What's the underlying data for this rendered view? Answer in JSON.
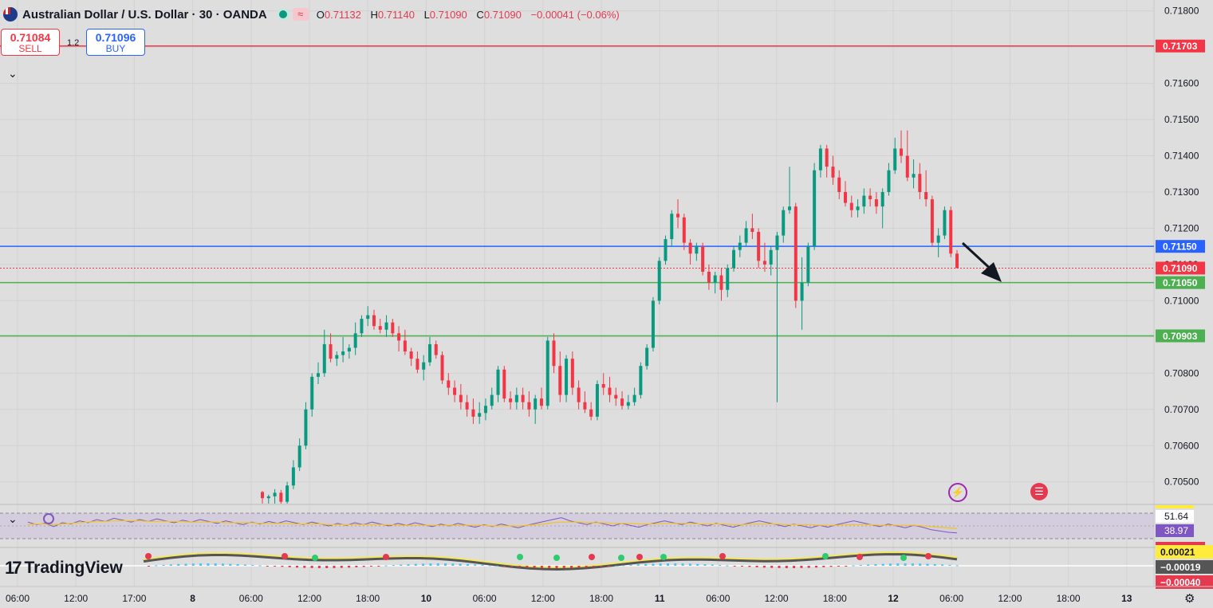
{
  "header": {
    "symbol_title": "Australian Dollar / U.S. Dollar · 30 · OANDA",
    "flag_icon": "au-us-flag-icon",
    "ohlc": {
      "open_label": "O",
      "open": "0.71132",
      "high_label": "H",
      "high": "0.71140",
      "low_label": "L",
      "low": "0.71090",
      "close_label": "C",
      "close": "0.71090",
      "change": "−0.00041 (−0.06%)"
    }
  },
  "trade": {
    "sell_price": "0.71084",
    "sell_label": "SELL",
    "spread": "1.2",
    "buy_price": "0.71096",
    "buy_label": "BUY"
  },
  "price_axis": {
    "ticks": [
      0.718,
      0.717,
      0.716,
      0.715,
      0.714,
      0.713,
      0.712,
      0.711,
      0.71,
      0.709,
      0.708,
      0.707,
      0.706,
      0.705
    ],
    "tick_labels": [
      "0.71800",
      "0.71700",
      "0.71600",
      "0.71500",
      "0.71400",
      "0.71300",
      "0.71200",
      "0.71100",
      "0.71000",
      "0.70900",
      "0.70800",
      "0.70700",
      "0.70600",
      "0.70500"
    ]
  },
  "levels": [
    {
      "price": 0.71703,
      "label": "0.71703",
      "color": "#f23645"
    },
    {
      "price": 0.7115,
      "label": "0.71150",
      "color": "#2962ff"
    },
    {
      "price": 0.7109,
      "label": "0.71090",
      "color": "#f23645"
    },
    {
      "price": 0.7105,
      "label": "0.71050",
      "color": "#4caf50"
    },
    {
      "price": 0.70903,
      "label": "0.70903",
      "color": "#4caf50"
    }
  ],
  "time_axis": {
    "labels": [
      "06:00",
      "12:00",
      "17:00",
      "8",
      "06:00",
      "12:00",
      "18:00",
      "10",
      "06:00",
      "12:00",
      "18:00",
      "11",
      "06:00",
      "12:00",
      "18:00",
      "12",
      "06:00",
      "12:00",
      "18:00",
      "13"
    ]
  },
  "rsi": {
    "value_1": "51.64",
    "value_2": "38.97"
  },
  "macd": {
    "value_1": "0.00021",
    "value_2": "−0.00019",
    "value_3": "−0.00040"
  },
  "branding": {
    "logo_text": "TradingView"
  },
  "icons": {
    "chevron": "chevron-down-icon",
    "settings": "gear-icon",
    "bolt": "lightning-icon",
    "us_flag": "us-flag-icon"
  },
  "colors": {
    "up": "#089981",
    "down": "#f23645",
    "rsi": "#7e57c2",
    "rsi_ma": "#f5c518"
  },
  "chart_data": {
    "type": "candlestick",
    "y_range": [
      0.7044,
      0.7183
    ],
    "candles": [
      [
        0.70472,
        0.70475,
        0.7044,
        0.70455
      ],
      [
        0.70455,
        0.70465,
        0.7044,
        0.7046
      ],
      [
        0.7046,
        0.7048,
        0.7044,
        0.7047
      ],
      [
        0.7047,
        0.70478,
        0.7044,
        0.70445
      ],
      [
        0.70445,
        0.705,
        0.7044,
        0.7049
      ],
      [
        0.7049,
        0.7056,
        0.7048,
        0.7054
      ],
      [
        0.7054,
        0.7062,
        0.7053,
        0.706
      ],
      [
        0.706,
        0.7072,
        0.7059,
        0.707
      ],
      [
        0.707,
        0.708,
        0.7068,
        0.7079
      ],
      [
        0.7079,
        0.7083,
        0.7077,
        0.708
      ],
      [
        0.708,
        0.7092,
        0.7079,
        0.7088
      ],
      [
        0.7088,
        0.7091,
        0.7083,
        0.7084
      ],
      [
        0.7084,
        0.7086,
        0.7082,
        0.7085
      ],
      [
        0.7085,
        0.709,
        0.7083,
        0.7086
      ],
      [
        0.7086,
        0.7088,
        0.7084,
        0.7087
      ],
      [
        0.7087,
        0.7094,
        0.7085,
        0.7091
      ],
      [
        0.7091,
        0.7096,
        0.709,
        0.7095
      ],
      [
        0.7095,
        0.70985,
        0.7093,
        0.7096
      ],
      [
        0.7096,
        0.70975,
        0.7092,
        0.7093
      ],
      [
        0.7093,
        0.7095,
        0.7091,
        0.7092
      ],
      [
        0.7092,
        0.7096,
        0.709,
        0.7094
      ],
      [
        0.7094,
        0.7095,
        0.709,
        0.7091
      ],
      [
        0.7091,
        0.7093,
        0.7086,
        0.7089
      ],
      [
        0.7089,
        0.7092,
        0.7085,
        0.7086
      ],
      [
        0.7086,
        0.7087,
        0.7082,
        0.7084
      ],
      [
        0.7084,
        0.7086,
        0.708,
        0.7081
      ],
      [
        0.7081,
        0.7085,
        0.7078,
        0.7083
      ],
      [
        0.7083,
        0.709,
        0.7082,
        0.7088
      ],
      [
        0.7088,
        0.7089,
        0.7084,
        0.7085
      ],
      [
        0.7085,
        0.7086,
        0.7077,
        0.7078
      ],
      [
        0.7078,
        0.708,
        0.7074,
        0.7076
      ],
      [
        0.7076,
        0.7078,
        0.7072,
        0.7074
      ],
      [
        0.7074,
        0.7077,
        0.707,
        0.7072
      ],
      [
        0.7072,
        0.7074,
        0.7068,
        0.707
      ],
      [
        0.707,
        0.7073,
        0.7066,
        0.7068
      ],
      [
        0.7068,
        0.7072,
        0.7066,
        0.7069
      ],
      [
        0.7069,
        0.7073,
        0.7067,
        0.7071
      ],
      [
        0.7071,
        0.7076,
        0.707,
        0.7074
      ],
      [
        0.7074,
        0.7082,
        0.7072,
        0.7081
      ],
      [
        0.7081,
        0.7082,
        0.7072,
        0.7073
      ],
      [
        0.7073,
        0.7075,
        0.707,
        0.7072
      ],
      [
        0.7072,
        0.7076,
        0.707,
        0.7074
      ],
      [
        0.7074,
        0.7076,
        0.707,
        0.7072
      ],
      [
        0.7072,
        0.7075,
        0.7068,
        0.707
      ],
      [
        0.707,
        0.7074,
        0.7066,
        0.7073
      ],
      [
        0.7073,
        0.7076,
        0.707,
        0.7071
      ],
      [
        0.7071,
        0.709,
        0.707,
        0.7089
      ],
      [
        0.7089,
        0.7091,
        0.708,
        0.7082
      ],
      [
        0.7082,
        0.7086,
        0.7072,
        0.7074
      ],
      [
        0.7074,
        0.7085,
        0.7072,
        0.7084
      ],
      [
        0.7084,
        0.7086,
        0.7074,
        0.7076
      ],
      [
        0.7076,
        0.7078,
        0.707,
        0.7072
      ],
      [
        0.7072,
        0.7075,
        0.7069,
        0.707
      ],
      [
        0.707,
        0.7072,
        0.7067,
        0.7068
      ],
      [
        0.7068,
        0.7078,
        0.7067,
        0.7077
      ],
      [
        0.7077,
        0.708,
        0.7074,
        0.7076
      ],
      [
        0.7076,
        0.7079,
        0.7072,
        0.7074
      ],
      [
        0.7074,
        0.7076,
        0.7071,
        0.7073
      ],
      [
        0.7073,
        0.7075,
        0.707,
        0.7071
      ],
      [
        0.7071,
        0.7074,
        0.707,
        0.7072
      ],
      [
        0.7072,
        0.7076,
        0.7071,
        0.7074
      ],
      [
        0.7074,
        0.7083,
        0.7073,
        0.7082
      ],
      [
        0.7082,
        0.7088,
        0.7081,
        0.7087
      ],
      [
        0.7087,
        0.7101,
        0.7086,
        0.71
      ],
      [
        0.71,
        0.7112,
        0.7099,
        0.7111
      ],
      [
        0.7111,
        0.7118,
        0.711,
        0.7117
      ],
      [
        0.7117,
        0.7125,
        0.7115,
        0.7124
      ],
      [
        0.7124,
        0.7128,
        0.712,
        0.7123
      ],
      [
        0.7123,
        0.7124,
        0.7114,
        0.7116
      ],
      [
        0.7116,
        0.7117,
        0.711,
        0.7113
      ],
      [
        0.7113,
        0.7116,
        0.7111,
        0.7115
      ],
      [
        0.7115,
        0.7116,
        0.7107,
        0.7108
      ],
      [
        0.7108,
        0.711,
        0.7103,
        0.7105
      ],
      [
        0.7105,
        0.7108,
        0.7102,
        0.7107
      ],
      [
        0.7107,
        0.7109,
        0.71,
        0.7103
      ],
      [
        0.7103,
        0.711,
        0.7101,
        0.7109
      ],
      [
        0.7109,
        0.7115,
        0.7108,
        0.7114
      ],
      [
        0.7114,
        0.7118,
        0.7112,
        0.7116
      ],
      [
        0.7116,
        0.7122,
        0.7115,
        0.712
      ],
      [
        0.712,
        0.7124,
        0.7117,
        0.7119
      ],
      [
        0.7119,
        0.712,
        0.7109,
        0.7111
      ],
      [
        0.7111,
        0.7116,
        0.7108,
        0.711
      ],
      [
        0.711,
        0.7115,
        0.7107,
        0.7114
      ],
      [
        0.7114,
        0.7119,
        0.7072,
        0.7118
      ],
      [
        0.7118,
        0.7126,
        0.7116,
        0.7125
      ],
      [
        0.7125,
        0.7137,
        0.7124,
        0.7126
      ],
      [
        0.7126,
        0.7127,
        0.7098,
        0.71
      ],
      [
        0.71,
        0.7112,
        0.7092,
        0.7105
      ],
      [
        0.7105,
        0.7116,
        0.7104,
        0.7115
      ],
      [
        0.7115,
        0.7138,
        0.7114,
        0.7136
      ],
      [
        0.7136,
        0.7143,
        0.7134,
        0.7142
      ],
      [
        0.7142,
        0.7143,
        0.7134,
        0.7137
      ],
      [
        0.7137,
        0.714,
        0.7132,
        0.7134
      ],
      [
        0.7134,
        0.7136,
        0.7128,
        0.713
      ],
      [
        0.713,
        0.7133,
        0.7126,
        0.7127
      ],
      [
        0.7127,
        0.7129,
        0.7123,
        0.7125
      ],
      [
        0.7125,
        0.7128,
        0.7123,
        0.7126
      ],
      [
        0.7126,
        0.7131,
        0.7124,
        0.7129
      ],
      [
        0.7129,
        0.7131,
        0.7126,
        0.7128
      ],
      [
        0.7128,
        0.713,
        0.7124,
        0.7126
      ],
      [
        0.7126,
        0.7131,
        0.712,
        0.713
      ],
      [
        0.713,
        0.7138,
        0.7129,
        0.7136
      ],
      [
        0.7136,
        0.7145,
        0.7135,
        0.7142
      ],
      [
        0.7142,
        0.7147,
        0.7138,
        0.714
      ],
      [
        0.714,
        0.7147,
        0.7133,
        0.7134
      ],
      [
        0.7134,
        0.7139,
        0.7131,
        0.7135
      ],
      [
        0.7135,
        0.7138,
        0.7128,
        0.713
      ],
      [
        0.713,
        0.7136,
        0.7126,
        0.7128
      ],
      [
        0.7128,
        0.7129,
        0.7115,
        0.7116
      ],
      [
        0.7116,
        0.712,
        0.7112,
        0.7118
      ],
      [
        0.7118,
        0.7126,
        0.7117,
        0.7125
      ],
      [
        0.7125,
        0.7126,
        0.7112,
        0.7113
      ],
      [
        0.7113,
        0.7114,
        0.7109,
        0.7109
      ]
    ],
    "rsi": [
      56,
      52,
      54,
      49,
      55,
      53,
      58,
      55,
      60,
      57,
      62,
      59,
      56,
      60,
      57,
      61,
      58,
      55,
      59,
      56,
      60,
      57,
      54,
      58,
      55,
      52,
      56,
      53,
      57,
      54,
      58,
      55,
      52,
      56,
      53,
      50,
      54,
      51,
      55,
      52,
      56,
      53,
      50,
      54,
      51,
      55,
      52,
      49,
      53,
      50,
      54,
      51,
      48,
      52,
      49,
      53,
      50,
      47,
      51,
      54,
      57,
      60,
      63,
      58,
      55,
      52,
      56,
      53,
      50,
      54,
      51,
      48,
      52,
      55,
      58,
      55,
      52,
      56,
      53,
      50,
      54,
      51,
      48,
      52,
      55,
      58,
      55,
      52,
      49,
      53,
      50,
      47,
      51,
      48,
      52,
      55,
      58,
      55,
      52,
      49,
      53,
      50,
      47,
      51,
      48,
      44,
      42,
      40,
      39
    ],
    "rsi_ma": [
      52,
      53,
      53,
      52,
      53,
      54,
      55,
      56,
      57,
      57,
      58,
      58,
      58,
      58,
      57,
      57,
      57,
      57,
      57,
      56,
      56,
      56,
      56,
      55,
      55,
      55,
      55,
      54,
      54,
      54,
      54,
      53,
      53,
      53,
      53,
      52,
      52,
      52,
      52,
      52,
      52,
      52,
      52,
      51,
      51,
      51,
      51,
      51,
      51,
      51,
      51,
      51,
      51,
      51,
      50,
      50,
      50,
      50,
      51,
      52,
      53,
      55,
      56,
      56,
      56,
      55,
      55,
      55,
      54,
      54,
      54,
      53,
      53,
      53,
      54,
      54,
      54,
      54,
      53,
      53,
      53,
      53,
      52,
      52,
      53,
      53,
      53,
      53,
      52,
      52,
      52,
      52,
      51,
      51,
      51,
      52,
      52,
      52,
      52,
      51,
      51,
      51,
      51,
      51,
      50,
      49,
      48,
      47,
      46
    ]
  }
}
